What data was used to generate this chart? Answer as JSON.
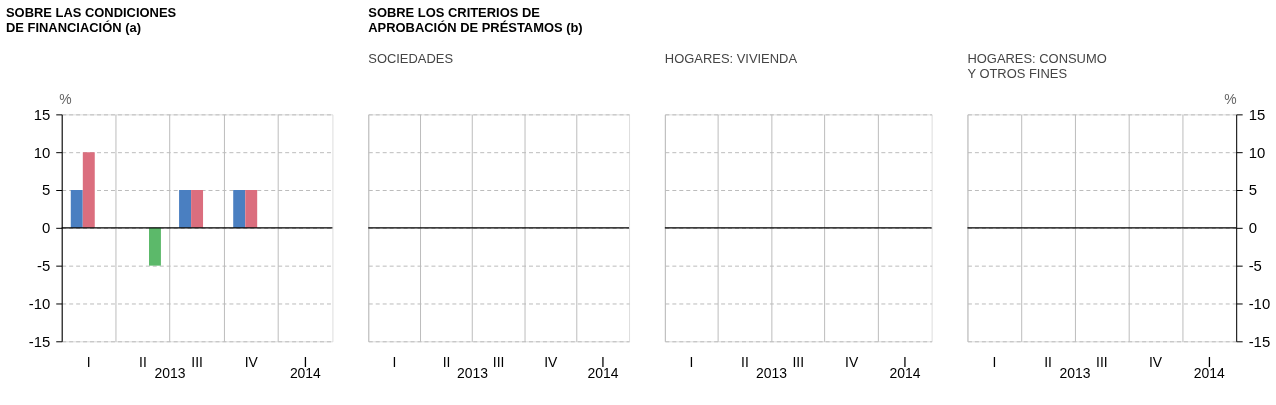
{
  "chart_data": [
    {
      "type": "bar",
      "title": "SOBRE LAS CONDICIONES\nDE FINANCIACIÓN (a)",
      "ylabel": "%",
      "categories": [
        "I",
        "II",
        "III",
        "IV",
        "I"
      ],
      "annotations": [
        "2013",
        "2014"
      ],
      "ylim": [
        -15,
        15
      ],
      "yticks": [
        -15,
        -10,
        -5,
        0,
        5,
        10,
        15
      ],
      "grid": true,
      "legend": false,
      "ref_lines": [
        {
          "axis": "y",
          "value": 0,
          "color": "#000000"
        }
      ],
      "series": [
        {
          "color": "#4a7fc1",
          "values": [
            5,
            null,
            5,
            5,
            null
          ]
        },
        {
          "color": "#db6e7e",
          "values": [
            10,
            null,
            5,
            5,
            null
          ]
        },
        {
          "color": "#5cb96a",
          "values": [
            null,
            -5,
            null,
            null,
            null
          ]
        }
      ]
    },
    {
      "type": "bar",
      "title": "SOBRE LOS CRITERIOS DE APROBACIÓN DE PRÉSTAMOS (b)",
      "subtitle": "SOCIEDADES",
      "categories": [
        "I",
        "II",
        "III",
        "IV",
        "I"
      ],
      "annotations": [
        "2013",
        "2014"
      ],
      "ylim": [
        -15,
        15
      ],
      "yticks": [
        -15,
        -10,
        -5,
        0,
        5,
        10,
        15
      ],
      "grid": true,
      "legend": false,
      "tick_labels": "x",
      "ref_lines": [
        {
          "axis": "y",
          "value": 0,
          "color": "#000000"
        }
      ],
      "series": [
        {
          "color": "#4a7fc1",
          "values": [
            0,
            0,
            0,
            0,
            0
          ]
        },
        {
          "color": "#db6e7e",
          "values": [
            0,
            0,
            0,
            0,
            0
          ]
        },
        {
          "color": "#5cb96a",
          "values": [
            0,
            0,
            0,
            0,
            0
          ]
        }
      ]
    },
    {
      "type": "bar",
      "subtitle": "HOGARES: VIVIENDA",
      "categories": [
        "I",
        "II",
        "III",
        "IV",
        "I"
      ],
      "annotations": [
        "2013",
        "2014"
      ],
      "ylim": [
        -15,
        15
      ],
      "yticks": [
        -15,
        -10,
        -5,
        0,
        5,
        10,
        15
      ],
      "grid": true,
      "legend": false,
      "tick_labels": "x",
      "ref_lines": [
        {
          "axis": "y",
          "value": 0,
          "color": "#000000"
        }
      ],
      "series": [
        {
          "color": "#4a7fc1",
          "values": [
            0,
            0,
            0,
            0,
            0
          ]
        },
        {
          "color": "#db6e7e",
          "values": [
            0,
            0,
            0,
            0,
            0
          ]
        },
        {
          "color": "#5cb96a",
          "values": [
            0,
            0,
            0,
            0,
            0
          ]
        }
      ]
    },
    {
      "type": "bar",
      "subtitle": "HOGARES: CONSUMO\nY OTROS FINES",
      "y2label": "%",
      "categories": [
        "I",
        "II",
        "III",
        "IV",
        "I"
      ],
      "annotations": [
        "2013",
        "2014"
      ],
      "y2lim": [
        -15,
        15
      ],
      "y2ticks": [
        -15,
        -10,
        -5,
        0,
        5,
        10,
        15
      ],
      "grid": true,
      "legend": false,
      "ref_lines": [
        {
          "axis": "y2",
          "value": 0,
          "color": "#000000"
        }
      ],
      "series": [
        {
          "axis": "y2",
          "color": "#4a7fc1",
          "values": [
            0,
            0,
            0,
            0,
            0
          ]
        },
        {
          "axis": "y2",
          "color": "#db6e7e",
          "values": [
            0,
            0,
            0,
            0,
            0
          ]
        },
        {
          "axis": "y2",
          "color": "#5cb96a",
          "values": [
            0,
            0,
            0,
            0,
            0
          ]
        }
      ]
    }
  ]
}
